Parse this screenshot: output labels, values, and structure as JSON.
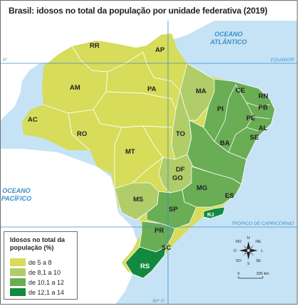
{
  "title": "Brasil: idosos no total da população por unidade federativa (2019)",
  "colors": {
    "sea": "#c6e3f5",
    "outside_land": "#ffffff",
    "cls_5_8": "#d7dc5a",
    "cls_8_10": "#b1cd6a",
    "cls_10_12": "#69ad55",
    "cls_12_14": "#13893f",
    "border": "#ffffff",
    "line": "#3d8fc9",
    "ocean_text": "#3d8fc9"
  },
  "map": {
    "ocean_atlantic": [
      "OCEANO",
      "ATLÂNTICO"
    ],
    "ocean_pacific": [
      "OCEANO",
      "PACÍFICO"
    ],
    "equator": "EQUADOR",
    "equator_degree": "0°",
    "tropic": "TRÓPICO DE CAPRICÓRNIO",
    "meridian": "50° O",
    "states": [
      {
        "uf": "RR",
        "cls": "5-8"
      },
      {
        "uf": "AP",
        "cls": "5-8"
      },
      {
        "uf": "AM",
        "cls": "5-8"
      },
      {
        "uf": "PA",
        "cls": "5-8"
      },
      {
        "uf": "AC",
        "cls": "5-8"
      },
      {
        "uf": "RO",
        "cls": "5-8"
      },
      {
        "uf": "MT",
        "cls": "5-8"
      },
      {
        "uf": "MA",
        "cls": "8,1-10"
      },
      {
        "uf": "TO",
        "cls": "8,1-10"
      },
      {
        "uf": "GO",
        "cls": "8,1-10"
      },
      {
        "uf": "DF",
        "cls": "8,1-10"
      },
      {
        "uf": "MS",
        "cls": "8,1-10"
      },
      {
        "uf": "CE",
        "cls": "10,1-12"
      },
      {
        "uf": "RN",
        "cls": "10,1-12"
      },
      {
        "uf": "PB",
        "cls": "10,1-12"
      },
      {
        "uf": "PE",
        "cls": "10,1-12"
      },
      {
        "uf": "AL",
        "cls": "10,1-12"
      },
      {
        "uf": "SE",
        "cls": "10,1-12"
      },
      {
        "uf": "PI",
        "cls": "10,1-12"
      },
      {
        "uf": "BA",
        "cls": "10,1-12"
      },
      {
        "uf": "MG",
        "cls": "10,1-12"
      },
      {
        "uf": "ES",
        "cls": "10,1-12"
      },
      {
        "uf": "SP",
        "cls": "10,1-12"
      },
      {
        "uf": "PR",
        "cls": "10,1-12"
      },
      {
        "uf": "SC",
        "cls": "10,1-12"
      },
      {
        "uf": "RJ",
        "cls": "12,1-14"
      },
      {
        "uf": "RS",
        "cls": "12,1-14"
      }
    ]
  },
  "compass": {
    "n": "N",
    "s": "S",
    "l": "L",
    "o": "O",
    "ne": "NE",
    "no": "NO",
    "se": "SE",
    "so": "SO"
  },
  "scale": {
    "start": "0",
    "end": "335 km"
  },
  "legend": {
    "title": "Idosos no total da população (%)",
    "items": [
      {
        "label": "de 5 a 8"
      },
      {
        "label": "de 8,1 a 10"
      },
      {
        "label": "de 10,1 a 12"
      },
      {
        "label": "de 12,1 a 14"
      }
    ]
  }
}
